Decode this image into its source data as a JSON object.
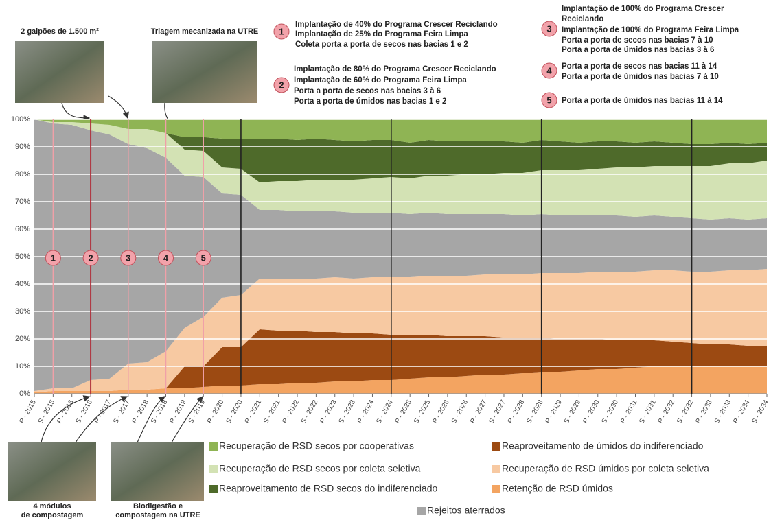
{
  "chart_data": {
    "type": "stacked_area",
    "categories": [
      "P - 2015",
      "S - 2015",
      "P - 2016",
      "S - 2016",
      "P - 2017",
      "S - 2017",
      "P - 2018",
      "S - 2018",
      "P - 2019",
      "S - 2019",
      "P - 2020",
      "S - 2020",
      "P - 2021",
      "S - 2021",
      "P - 2022",
      "S - 2022",
      "P - 2023",
      "S - 2023",
      "P - 2024",
      "S - 2024",
      "P - 2025",
      "S - 2025",
      "P - 2026",
      "S - 2026",
      "P - 2027",
      "S - 2027",
      "P - 2028",
      "S - 2028",
      "P - 2029",
      "S - 2029",
      "P - 2030",
      "S - 2030",
      "P - 2031",
      "S - 2031",
      "P - 2032",
      "S - 2032",
      "P - 2033",
      "S - 2033",
      "P - 2034",
      "S - 2034"
    ],
    "series": [
      {
        "name": "Retenção de RSD úmidos",
        "color": "#f3a461",
        "values": [
          0.5,
          1,
          1,
          1,
          1,
          1.5,
          1.5,
          2,
          2,
          2.5,
          3,
          3,
          3.5,
          3.5,
          4,
          4,
          4.5,
          4.5,
          5,
          5,
          5.5,
          6,
          6,
          6.5,
          7,
          7,
          7.5,
          8,
          8,
          8.5,
          9,
          9,
          9.5,
          10,
          10,
          10,
          10,
          10,
          10,
          10
        ]
      },
      {
        "name": "Reaproveitamento de úmidos do indiferenciado",
        "color": "#9c4a12",
        "values": [
          0,
          0,
          0,
          0,
          0,
          0,
          0,
          0,
          8,
          7.5,
          14,
          14,
          20,
          19.5,
          19,
          18.5,
          18,
          17.5,
          17,
          16.5,
          16,
          15.5,
          15,
          14.5,
          14,
          13.5,
          13,
          12.5,
          12,
          11.5,
          11,
          10.5,
          10,
          9.5,
          9,
          8.5,
          8,
          8,
          7.5,
          7.5
        ]
      },
      {
        "name": "Recuperação de RSD úmidos por coleta seletiva",
        "color": "#f7c9a2",
        "values": [
          0.5,
          1,
          1,
          4,
          4.5,
          9.5,
          10,
          13.5,
          14,
          18,
          18,
          19,
          18.5,
          19,
          19,
          19.5,
          20,
          20,
          20.5,
          21,
          21,
          21.5,
          22,
          22,
          22.5,
          23,
          23,
          23.5,
          24,
          24,
          24.5,
          25,
          25,
          25.5,
          26,
          26,
          26.5,
          27,
          27.5,
          28
        ]
      },
      {
        "name": "Rejeitos aterrados",
        "color": "#a6a6a6",
        "values": [
          99,
          96.5,
          96,
          91,
          89,
          80,
          78,
          70.5,
          55.5,
          51,
          38,
          36.5,
          25,
          25,
          24.5,
          24.5,
          24,
          24,
          23.5,
          23.5,
          23,
          23,
          22.5,
          22.5,
          22,
          22,
          21.5,
          21.5,
          21,
          21,
          20.5,
          20.5,
          20,
          20,
          19.5,
          19.5,
          19,
          19,
          18.5,
          18.5
        ]
      },
      {
        "name": "Recuperação de RSD secos por coleta seletiva",
        "color": "#d3e2b4",
        "values": [
          0,
          0.5,
          1,
          2.5,
          3.5,
          5.5,
          7,
          9,
          9.5,
          9.5,
          9.5,
          9.5,
          10,
          10.5,
          11,
          11.5,
          11.5,
          12,
          12.5,
          13,
          13,
          13.5,
          14,
          14.5,
          14.5,
          15,
          15.5,
          16,
          16.5,
          16.5,
          17,
          17.5,
          18,
          18,
          18.5,
          19,
          19.5,
          20,
          20.5,
          21
        ]
      },
      {
        "name": "Reaproveitamento de RSD secos do indiferenciado",
        "color": "#4e6a2a",
        "values": [
          0,
          0,
          0,
          0,
          0,
          0,
          0,
          0,
          4.5,
          5,
          10.5,
          11,
          16,
          15.5,
          15,
          15,
          14.5,
          14,
          14,
          13.5,
          13,
          13,
          12.5,
          12,
          12,
          11.5,
          11,
          11,
          10.5,
          10,
          10,
          9.5,
          9,
          9,
          8.5,
          8,
          8,
          7.5,
          7,
          6.5
        ]
      },
      {
        "name": "Recuperação de RSD secos por cooperativas",
        "color": "#8fb454",
        "values": [
          0,
          1,
          1,
          1.5,
          2,
          3.5,
          3.5,
          5,
          6.5,
          6.5,
          7,
          7,
          7,
          7,
          7.5,
          7,
          7.5,
          8,
          7.5,
          7.5,
          8.5,
          7.5,
          8,
          8,
          8,
          8,
          8.5,
          7.5,
          8,
          8.5,
          8,
          8,
          8.5,
          8,
          8.5,
          9,
          9,
          8.5,
          9,
          8.5
        ]
      }
    ],
    "ylim": [
      0,
      100
    ],
    "yticks": [
      {
        "value": 0,
        "label": "0%"
      },
      {
        "value": 10,
        "label": "10%"
      },
      {
        "value": 20,
        "label": "20%"
      },
      {
        "value": 30,
        "label": "30%"
      },
      {
        "value": 40,
        "label": "40%"
      },
      {
        "value": 50,
        "label": "50%"
      },
      {
        "value": 60,
        "label": "60%"
      },
      {
        "value": 70,
        "label": "70%"
      },
      {
        "value": 80,
        "label": "80%"
      },
      {
        "value": 90,
        "label": "90%"
      },
      {
        "value": 100,
        "label": "100%"
      }
    ],
    "grid": true,
    "annotations": [
      {
        "label": "1",
        "lines": [
          "Implantação de 40% do Programa Crescer Reciclando",
          "Implantação de 25% do Programa Feira Limpa",
          "Coleta porta a porta de secos nas bacias 1 e 2"
        ]
      },
      {
        "label": "2",
        "lines": [
          "Implantação de 80% do Programa Crescer Reciclando",
          "Implantação de 60% do Programa Feira Limpa",
          "Porta a porta de secos nas bacias 3 à 6",
          "Porta a porta de úmidos nas bacias 1 e 2"
        ]
      },
      {
        "label": "3",
        "lines": [
          "Implantação de 100% do Programa Crescer",
          "Reciclando",
          "Implantação de 100% do Programa Feira Limpa",
          "Porta a porta de secos nas bacias 7 à 10",
          "Porta a porta de úmidos nas bacias 3 à 6"
        ]
      },
      {
        "label": "4",
        "lines": [
          "Porta a porta de secos nas bacias 11 à 14",
          "Porta a porta de úmidos nas bacias 7 à 10"
        ]
      },
      {
        "label": "5",
        "lines": [
          "Porta a porta de úmidos nas bacias 11 à 14"
        ]
      }
    ],
    "photos": [
      {
        "caption": [
          "2 galpões de 1.500 m²"
        ]
      },
      {
        "caption": [
          "Triagem mecanizada na UTRE"
        ]
      },
      {
        "caption": [
          "4 módulos",
          "de compostagem"
        ]
      },
      {
        "caption": [
          "Biodigestão e",
          "compostagem na UTRE"
        ]
      }
    ]
  }
}
